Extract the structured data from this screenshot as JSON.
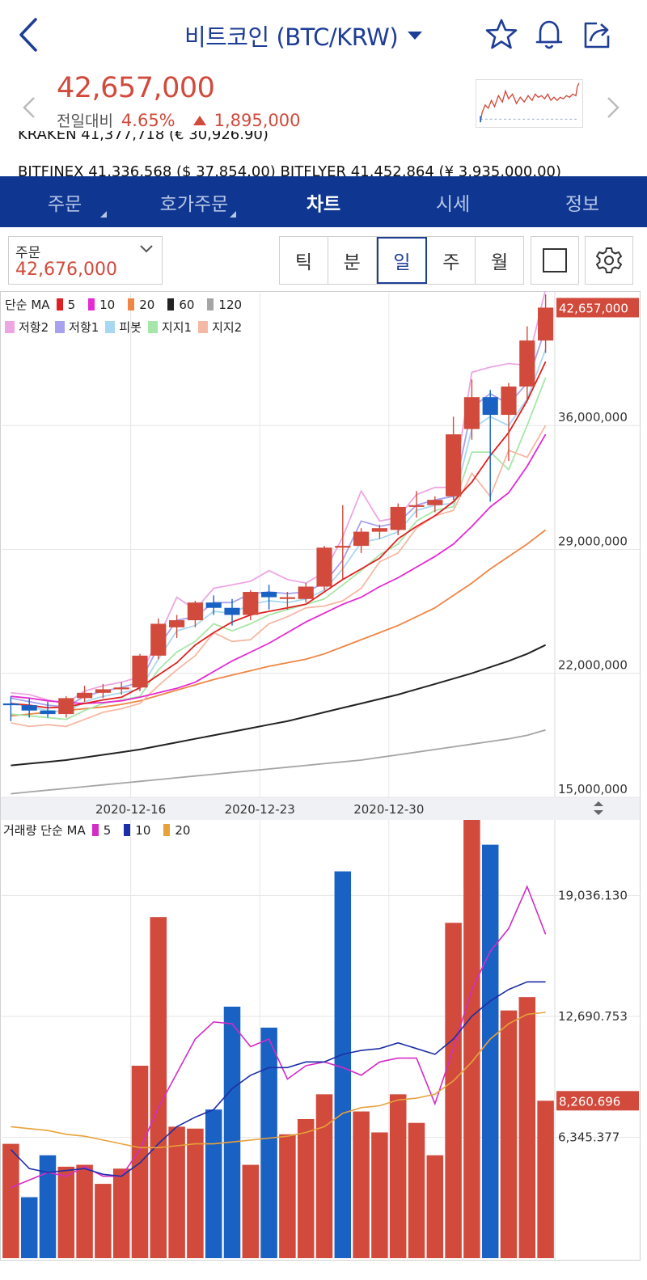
{
  "header": {
    "title": "비트코인 (BTC/KRW)",
    "price": "42,657,000",
    "change_label": "전일대비",
    "change_pct": "4.65%",
    "change_amt": "1,895,000"
  },
  "exchanges": {
    "row1": "KRAKEN      41,377,718 (€ 30,926.90)",
    "row2": "BITFINEX    41,336,568 ($ 37,854.00)      BITFLYER   41,452,864 (¥ 3,935,000.00)"
  },
  "tabs": [
    "주문",
    "호가주문",
    "차트",
    "시세",
    "정보"
  ],
  "active_tab": 2,
  "order": {
    "label": "주문",
    "value": "42,676,000"
  },
  "periods": [
    "틱",
    "분",
    "일",
    "주",
    "월"
  ],
  "active_period": 2,
  "colors": {
    "up": "#d14a3c",
    "down": "#1a61c4",
    "brand": "#0f3792",
    "ma5": "#e02020",
    "ma10": "#e52ad3",
    "ma20": "#ef8645",
    "ma60": "#222222",
    "ma120": "#a5a5a5",
    "res2": "#eda6e2",
    "res1": "#a8a2ee",
    "pivot": "#a8d8f0",
    "sup1": "#a6e6a8",
    "sup2": "#f5b8a4",
    "vma5": "#d42cc6",
    "vma10": "#1d2fa6",
    "vma20": "#e8a23a"
  },
  "price_legend": {
    "ma_title": "단순 MA",
    "ma": [
      {
        "label": "5",
        "color": "#e02020"
      },
      {
        "label": "10",
        "color": "#e52ad3"
      },
      {
        "label": "20",
        "color": "#ef8645"
      },
      {
        "label": "60",
        "color": "#222222"
      },
      {
        "label": "120",
        "color": "#a5a5a5"
      }
    ],
    "pivots": [
      {
        "label": "저항2",
        "color": "#eda6e2"
      },
      {
        "label": "저항1",
        "color": "#a8a2ee"
      },
      {
        "label": "피봇",
        "color": "#a8d8f0"
      },
      {
        "label": "지지1",
        "color": "#a6e6a8"
      },
      {
        "label": "지지2",
        "color": "#f5b8a4"
      }
    ]
  },
  "volume_legend": {
    "title": "거래량 단순 MA",
    "ma": [
      {
        "label": "5",
        "color": "#d42cc6"
      },
      {
        "label": "10",
        "color": "#1d2fa6"
      },
      {
        "label": "20",
        "color": "#e8a23a"
      }
    ]
  },
  "chart_data": {
    "type": "candlestick",
    "price_axis": {
      "ticks": [
        15000000,
        22000000,
        29000000,
        36000000
      ],
      "tick_labels": [
        "15,000,000",
        "22,000,000",
        "29,000,000",
        "36,000,000"
      ],
      "range": [
        15000000,
        43500000
      ]
    },
    "x_axis": {
      "tick_labels": [
        "2020-12-16",
        "2020-12-23",
        "2020-12-30"
      ],
      "tick_index": [
        7,
        14,
        21
      ]
    },
    "last_price": 42657000,
    "last_price_label": "42,657,000",
    "candles": [
      {
        "o": 20300000,
        "h": 20700000,
        "l": 19300000,
        "c": 20200000
      },
      {
        "o": 20200000,
        "h": 20600000,
        "l": 19500000,
        "c": 19900000
      },
      {
        "o": 19900000,
        "h": 20400000,
        "l": 19500000,
        "c": 19700000
      },
      {
        "o": 19700000,
        "h": 20700000,
        "l": 19500000,
        "c": 20600000
      },
      {
        "o": 20600000,
        "h": 21300000,
        "l": 20400000,
        "c": 20900000
      },
      {
        "o": 20900000,
        "h": 21400000,
        "l": 20600000,
        "c": 21100000
      },
      {
        "o": 21100000,
        "h": 21500000,
        "l": 20800000,
        "c": 21200000
      },
      {
        "o": 21200000,
        "h": 23100000,
        "l": 21000000,
        "c": 23000000
      },
      {
        "o": 23000000,
        "h": 25100000,
        "l": 22800000,
        "c": 24800000
      },
      {
        "o": 24600000,
        "h": 25300000,
        "l": 24000000,
        "c": 25000000
      },
      {
        "o": 25000000,
        "h": 26100000,
        "l": 24600000,
        "c": 26000000
      },
      {
        "o": 26000000,
        "h": 26400000,
        "l": 25300000,
        "c": 25700000
      },
      {
        "o": 25700000,
        "h": 26200000,
        "l": 24700000,
        "c": 25300000
      },
      {
        "o": 25300000,
        "h": 26700000,
        "l": 25000000,
        "c": 26600000
      },
      {
        "o": 26600000,
        "h": 27000000,
        "l": 25600000,
        "c": 26300000
      },
      {
        "o": 26200000,
        "h": 26600000,
        "l": 25600000,
        "c": 26300000
      },
      {
        "o": 26200000,
        "h": 27100000,
        "l": 26000000,
        "c": 26900000
      },
      {
        "o": 26900000,
        "h": 29200000,
        "l": 26700000,
        "c": 29100000
      },
      {
        "o": 29100000,
        "h": 31500000,
        "l": 27300000,
        "c": 29200000
      },
      {
        "o": 29200000,
        "h": 30200000,
        "l": 28800000,
        "c": 30000000
      },
      {
        "o": 30000000,
        "h": 30400000,
        "l": 29600000,
        "c": 30200000
      },
      {
        "o": 30100000,
        "h": 31600000,
        "l": 29800000,
        "c": 31400000
      },
      {
        "o": 31400000,
        "h": 32300000,
        "l": 30800000,
        "c": 31500000
      },
      {
        "o": 31500000,
        "h": 32000000,
        "l": 31100000,
        "c": 31800000
      },
      {
        "o": 32000000,
        "h": 36500000,
        "l": 31800000,
        "c": 35500000
      },
      {
        "o": 35800000,
        "h": 38600000,
        "l": 35200000,
        "c": 37600000
      },
      {
        "o": 37600000,
        "h": 38000000,
        "l": 31700000,
        "c": 36600000
      },
      {
        "o": 36600000,
        "h": 38400000,
        "l": 34000000,
        "c": 38200000
      },
      {
        "o": 38200000,
        "h": 41600000,
        "l": 37500000,
        "c": 40800000
      },
      {
        "o": 40800000,
        "h": 43400000,
        "l": 40100000,
        "c": 42657000
      }
    ],
    "series": [
      {
        "name": "5",
        "color": "#e02020",
        "values": [
          20300000,
          20200000,
          20050000,
          20100000,
          20300000,
          20500000,
          20650000,
          21200000,
          21900000,
          22600000,
          23600000,
          24300000,
          24900000,
          25300000,
          25500000,
          25700000,
          25900000,
          26600000,
          27300000,
          27900000,
          28500000,
          29600000,
          30300000,
          30900000,
          31700000,
          32800000,
          34300000,
          35600000,
          37400000,
          39600000
        ]
      },
      {
        "name": "10",
        "color": "#e52ad3",
        "values": [
          20700000,
          20600000,
          20450000,
          20350000,
          20300000,
          20350000,
          20450000,
          20650000,
          20900000,
          21150000,
          21500000,
          22100000,
          22700000,
          23200000,
          23700000,
          24300000,
          24900000,
          25400000,
          25900000,
          26300000,
          26900000,
          27400000,
          28000000,
          28600000,
          29300000,
          30300000,
          31400000,
          32200000,
          33700000,
          35500000
        ]
      },
      {
        "name": "20",
        "color": "#ef8645",
        "values": [
          19600000,
          19700000,
          19800000,
          19900000,
          20000000,
          20100000,
          20250000,
          20450000,
          20750000,
          21050000,
          21350000,
          21650000,
          21900000,
          22150000,
          22400000,
          22600000,
          22800000,
          23100000,
          23500000,
          23900000,
          24300000,
          24700000,
          25200000,
          25700000,
          26400000,
          27100000,
          27900000,
          28600000,
          29300000,
          30100000
        ]
      },
      {
        "name": "60",
        "color": "#222222",
        "values": [
          16800000,
          16900000,
          17000000,
          17100000,
          17250000,
          17400000,
          17550000,
          17700000,
          17900000,
          18100000,
          18300000,
          18500000,
          18700000,
          18900000,
          19100000,
          19300000,
          19550000,
          19800000,
          20050000,
          20300000,
          20550000,
          20800000,
          21100000,
          21400000,
          21700000,
          22000000,
          22350000,
          22700000,
          23100000,
          23600000
        ]
      },
      {
        "name": "120",
        "color": "#a5a5a5",
        "values": [
          15200000,
          15300000,
          15400000,
          15500000,
          15600000,
          15700000,
          15800000,
          15900000,
          16000000,
          16100000,
          16200000,
          16300000,
          16400000,
          16500000,
          16600000,
          16700000,
          16800000,
          16900000,
          17000000,
          17100000,
          17250000,
          17400000,
          17550000,
          17700000,
          17850000,
          18000000,
          18150000,
          18300000,
          18500000,
          18800000
        ]
      },
      {
        "name": "저항2",
        "color": "#eda6e2",
        "values": [
          20900000,
          20800000,
          20500000,
          20300000,
          21000000,
          21300000,
          21500000,
          21800000,
          24000000,
          26300000,
          25600000,
          26800000,
          27000000,
          27200000,
          27800000,
          27300000,
          27100000,
          27700000,
          29700000,
          32300000,
          30600000,
          30800000,
          32100000,
          32500000,
          32500000,
          39000000,
          39300000,
          39500000,
          39400000,
          43700000
        ]
      },
      {
        "name": "저항1",
        "color": "#a8a2ee",
        "values": [
          20600000,
          20400000,
          20200000,
          20100000,
          20700000,
          21000000,
          21200000,
          21500000,
          23500000,
          25000000,
          25200000,
          26000000,
          26000000,
          26500000,
          26600000,
          26500000,
          26600000,
          27100000,
          28400000,
          30600000,
          30300000,
          30500000,
          31500000,
          31800000,
          32000000,
          37000000,
          37800000,
          37200000,
          38400000,
          41500000
        ]
      },
      {
        "name": "피봇",
        "color": "#a8d8f0",
        "values": [
          20300000,
          20100000,
          19900000,
          19800000,
          20400000,
          20700000,
          20900000,
          21100000,
          22800000,
          24400000,
          24700000,
          25500000,
          25400000,
          25900000,
          26100000,
          26000000,
          26200000,
          26700000,
          27900000,
          29400000,
          29600000,
          30000000,
          31200000,
          31500000,
          31600000,
          35800000,
          36500000,
          36000000,
          37500000,
          40300000
        ]
      },
      {
        "name": "지지1",
        "color": "#a6e6a8",
        "values": [
          19700000,
          19600000,
          19500000,
          19400000,
          19900000,
          20300000,
          20500000,
          20700000,
          22200000,
          23200000,
          23800000,
          24800000,
          24400000,
          24800000,
          25300000,
          25600000,
          25900000,
          26200000,
          27000000,
          27800000,
          28700000,
          29300000,
          30600000,
          31200000,
          31400000,
          34500000,
          34500000,
          33500000,
          36000000,
          38700000
        ]
      },
      {
        "name": "지지2",
        "color": "#f5b8a4",
        "values": [
          19200000,
          19000000,
          19100000,
          19000000,
          19400000,
          19800000,
          20000000,
          20300000,
          21300000,
          22200000,
          23000000,
          24300000,
          23800000,
          23900000,
          24800000,
          25200000,
          25700000,
          25800000,
          26100000,
          26800000,
          28300000,
          28800000,
          30200000,
          30900000,
          31200000,
          33300000,
          32000000,
          34600000,
          34200000,
          36000000
        ]
      }
    ],
    "volume": {
      "axis_ticks": [
        6345.377,
        12690.753,
        19036.13
      ],
      "axis_tick_labels": [
        "6,345.377",
        "12,690.753",
        "19,036.130"
      ],
      "range": [
        0,
        23000
      ],
      "last_label": "8,260.696",
      "last_value": 8260.696,
      "bars": [
        6000,
        3200,
        5400,
        4800,
        4900,
        3900,
        4700,
        10100,
        17900,
        6900,
        6800,
        7800,
        13200,
        4900,
        12100,
        6500,
        7300,
        8600,
        20300,
        7700,
        6600,
        8600,
        7100,
        5400,
        17600,
        24200,
        21700,
        13000,
        13700,
        8260.696
      ],
      "up": [
        true,
        false,
        false,
        true,
        true,
        true,
        true,
        true,
        true,
        true,
        true,
        false,
        false,
        true,
        false,
        true,
        true,
        true,
        false,
        true,
        true,
        true,
        true,
        true,
        true,
        true,
        false,
        true,
        true,
        true
      ],
      "ma": [
        {
          "name": "5",
          "color": "#d42cc6",
          "values": [
            3700,
            4100,
            4500,
            4300,
            4800,
            4300,
            4300,
            5700,
            7900,
            9700,
            11500,
            12400,
            12300,
            11100,
            11500,
            9400,
            10100,
            10300,
            10000,
            9600,
            10300,
            10500,
            10500,
            8100,
            11000,
            14100,
            16100,
            17300,
            19500,
            17000
          ]
        },
        {
          "name": "10",
          "color": "#1d2fa6",
          "values": [
            5700,
            4700,
            4500,
            4600,
            4700,
            4400,
            4300,
            5000,
            6000,
            6900,
            7400,
            7800,
            8900,
            9600,
            10000,
            10000,
            10300,
            10300,
            10700,
            10900,
            11000,
            11300,
            11000,
            10700,
            11500,
            12700,
            13500,
            14100,
            14500,
            14500
          ]
        },
        {
          "name": "20",
          "color": "#e8a23a",
          "values": [
            6900,
            6800,
            6700,
            6500,
            6400,
            6200,
            6000,
            5800,
            5800,
            5900,
            6000,
            6000,
            6100,
            6200,
            6300,
            6400,
            6600,
            6900,
            7600,
            7900,
            8000,
            8300,
            8400,
            8600,
            9300,
            10300,
            11500,
            12300,
            12800,
            12900
          ]
        }
      ]
    }
  }
}
